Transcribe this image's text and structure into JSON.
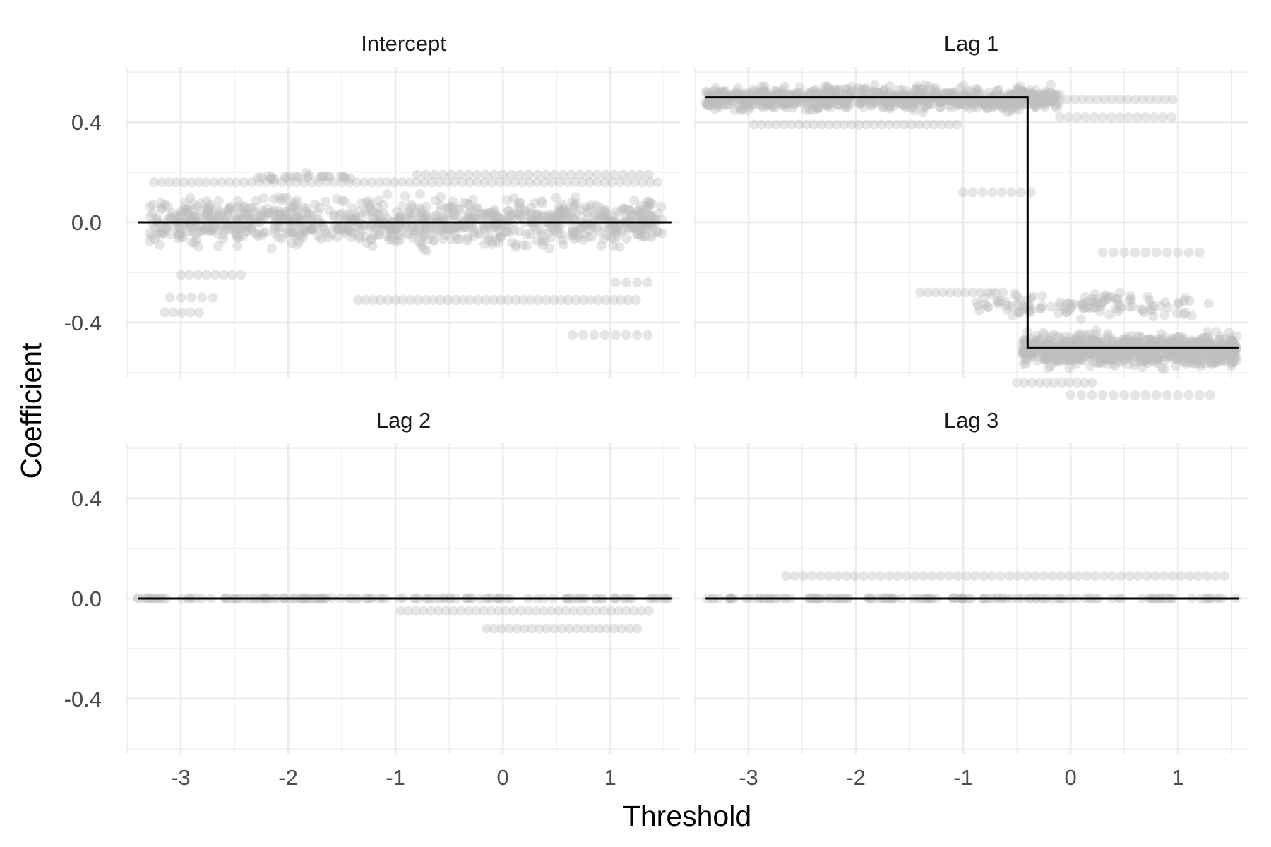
{
  "chart_data": {
    "type": "scatter",
    "xlabel": "Threshold",
    "ylabel": "Coefficient",
    "xlim": [
      -3.5,
      1.65
    ],
    "ylim": [
      -0.62,
      0.62
    ],
    "x_ticks": [
      -3,
      -2,
      -1,
      0,
      1
    ],
    "x_tick_labels": [
      "-3",
      "-2",
      "-1",
      "0",
      "1"
    ],
    "y_ticks": [
      -0.4,
      0.0,
      0.4
    ],
    "y_tick_labels": [
      "-0.4",
      "0.0",
      "0.4"
    ],
    "grid": true,
    "colors": {
      "points": "#bebebe",
      "line": "#000000",
      "grid": "#ebebeb"
    },
    "panels": [
      {
        "title": "Intercept",
        "line": {
          "x": [
            -3.4,
            1.57
          ],
          "y": [
            0.0,
            0.0
          ]
        },
        "point_bands": [
          {
            "x_range": [
              -3.3,
              1.5
            ],
            "y_range": [
              -0.13,
              0.13
            ],
            "count": 900
          },
          {
            "x_range": [
              -2.3,
              -1.4
            ],
            "y_range": [
              0.16,
              0.2
            ],
            "count": 25
          }
        ],
        "point_rows": [
          {
            "y": 0.16,
            "x_range": [
              -3.25,
              1.45
            ],
            "step": 0.07
          },
          {
            "y": 0.19,
            "x_range": [
              -0.8,
              1.4
            ],
            "step": 0.08
          },
          {
            "y": -0.31,
            "x_range": [
              -1.35,
              1.3
            ],
            "step": 0.07
          },
          {
            "y": -0.21,
            "x_range": [
              -3.0,
              -2.4
            ],
            "step": 0.08
          },
          {
            "y": -0.3,
            "x_range": [
              -3.1,
              -2.7
            ],
            "step": 0.1
          },
          {
            "y": -0.36,
            "x_range": [
              -3.15,
              -2.8
            ],
            "step": 0.08
          },
          {
            "y": -0.24,
            "x_range": [
              1.05,
              1.35
            ],
            "step": 0.1
          },
          {
            "y": -0.45,
            "x_range": [
              0.65,
              1.38
            ],
            "step": 0.1
          }
        ]
      },
      {
        "title": "Lag 1",
        "line": {
          "x": [
            -3.4,
            -0.4,
            -0.4,
            1.57
          ],
          "y": [
            0.5,
            0.5,
            -0.5,
            -0.5
          ]
        },
        "point_bands": [
          {
            "x_range": [
              -3.4,
              -0.1
            ],
            "y_range": [
              0.43,
              0.56
            ],
            "count": 750
          },
          {
            "x_range": [
              -0.45,
              1.55
            ],
            "y_range": [
              -0.6,
              -0.42
            ],
            "count": 750
          },
          {
            "x_range": [
              -0.9,
              1.3
            ],
            "y_range": [
              -0.4,
              -0.26
            ],
            "count": 120
          }
        ],
        "point_rows": [
          {
            "y": 0.39,
            "x_range": [
              -2.95,
              -1.05
            ],
            "step": 0.07
          },
          {
            "y": 0.49,
            "x_range": [
              -0.1,
              1.0
            ],
            "step": 0.07
          },
          {
            "y": 0.42,
            "x_range": [
              -0.1,
              1.0
            ],
            "step": 0.08
          },
          {
            "y": 0.12,
            "x_range": [
              -1.0,
              -0.3
            ],
            "step": 0.09
          },
          {
            "y": -0.12,
            "x_range": [
              0.3,
              1.2
            ],
            "step": 0.1
          },
          {
            "y": -0.28,
            "x_range": [
              -1.4,
              -0.6
            ],
            "step": 0.07
          },
          {
            "y": -0.64,
            "x_range": [
              -0.5,
              0.2
            ],
            "step": 0.07
          },
          {
            "y": -0.69,
            "x_range": [
              0.0,
              1.3
            ],
            "step": 0.1
          }
        ]
      },
      {
        "title": "Lag 2",
        "line": {
          "x": [
            -3.4,
            1.57
          ],
          "y": [
            0.0,
            0.0
          ]
        },
        "point_bands": [
          {
            "x_range": [
              -3.4,
              1.55
            ],
            "y_range": [
              -0.003,
              0.003
            ],
            "count": 140
          }
        ],
        "point_rows": [
          {
            "y": -0.05,
            "x_range": [
              -0.95,
              1.38
            ],
            "step": 0.07
          },
          {
            "y": -0.12,
            "x_range": [
              -0.15,
              1.25
            ],
            "step": 0.07
          }
        ]
      },
      {
        "title": "Lag 3",
        "line": {
          "x": [
            -3.4,
            1.57
          ],
          "y": [
            0.0,
            0.0
          ]
        },
        "point_bands": [
          {
            "x_range": [
              -3.4,
              1.55
            ],
            "y_range": [
              -0.003,
              0.003
            ],
            "count": 140
          }
        ],
        "point_rows": [
          {
            "y": 0.09,
            "x_range": [
              -2.65,
              1.45
            ],
            "step": 0.08
          }
        ]
      }
    ]
  }
}
